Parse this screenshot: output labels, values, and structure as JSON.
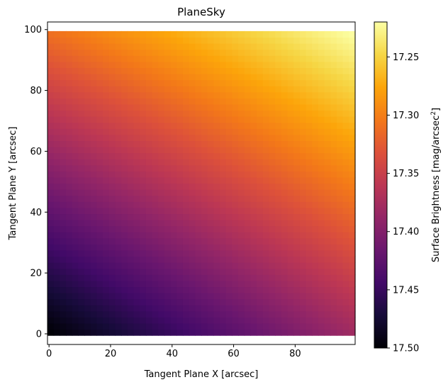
{
  "chart_data": {
    "type": "heatmap",
    "title": "PlaneSky",
    "xlabel": "Tangent Plane X [arcsec]",
    "ylabel": "Tangent Plane Y [arcsec]",
    "xlim": [
      -0.5,
      99.5
    ],
    "ylim": [
      -3.5,
      102.5
    ],
    "data_extent": {
      "x": [
        0,
        99
      ],
      "y": [
        0,
        99
      ]
    },
    "x_ticks": [
      {
        "value": 0,
        "label": "0"
      },
      {
        "value": 20,
        "label": "20"
      },
      {
        "value": 40,
        "label": "40"
      },
      {
        "value": 60,
        "label": "60"
      },
      {
        "value": 80,
        "label": "80"
      }
    ],
    "y_ticks": [
      {
        "value": 0,
        "label": "0"
      },
      {
        "value": 20,
        "label": "20"
      },
      {
        "value": 40,
        "label": "40"
      },
      {
        "value": 60,
        "label": "60"
      },
      {
        "value": 80,
        "label": "80"
      },
      {
        "value": 100,
        "label": "100"
      }
    ],
    "colorbar": {
      "label_prefix": "Surface Brightness [mag/arcsec",
      "label_sup": "2",
      "label_suffix": "]",
      "colormap": "inferno",
      "inverted": true,
      "vmin": 17.22,
      "vmax": 17.5,
      "ticks": [
        {
          "value": 17.25,
          "label": "17.25"
        },
        {
          "value": 17.3,
          "label": "17.30"
        },
        {
          "value": 17.35,
          "label": "17.35"
        },
        {
          "value": 17.4,
          "label": "17.40"
        },
        {
          "value": 17.45,
          "label": "17.45"
        },
        {
          "value": 17.5,
          "label": "17.50"
        }
      ]
    },
    "surface": {
      "corner_values": {
        "x0_y0": 17.5,
        "x99_y0": 17.38,
        "x0_y99": 17.31,
        "x99_y99": 17.22
      }
    },
    "grid": false
  }
}
